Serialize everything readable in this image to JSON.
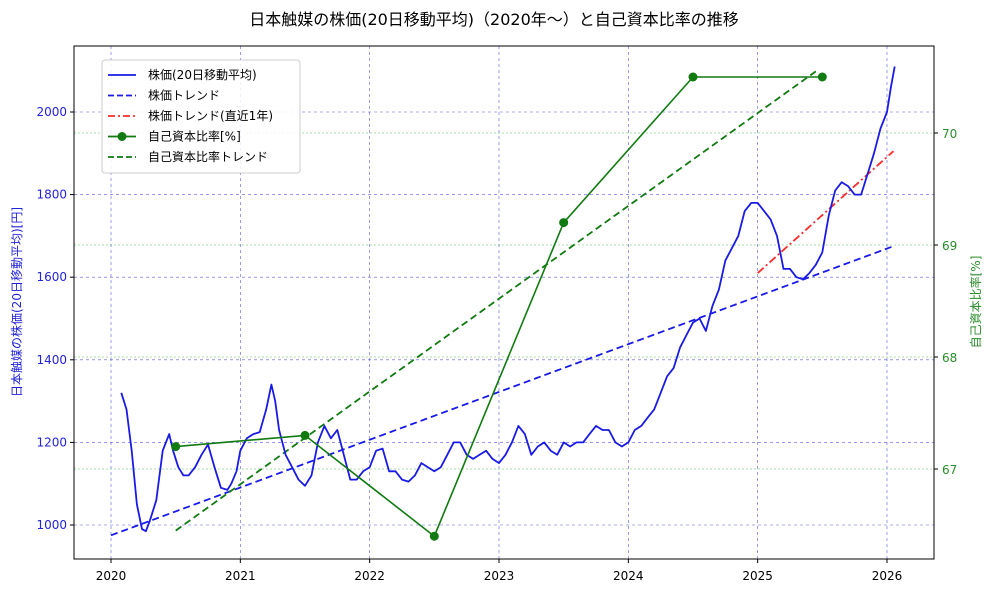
{
  "chart_data": {
    "type": "line",
    "title": "日本触媒の株価(20日移動平均)（2020年〜）と自己資本比率の推移",
    "xlabel": "",
    "ylabel": "日本触媒の株価(20日移動平均)[円]",
    "y2label": "自己資本比率[%]",
    "xlim": [
      2019.7,
      2026.35
    ],
    "ylim": [
      920,
      2160
    ],
    "y2lim": [
      66.2,
      70.8
    ],
    "x_ticks": [
      "2020",
      "2021",
      "2022",
      "2023",
      "2024",
      "2025",
      "2026"
    ],
    "y_ticks": [
      "1000",
      "1200",
      "1400",
      "1600",
      "1800",
      "2000"
    ],
    "y2_ticks": [
      "67",
      "68",
      "69",
      "70"
    ],
    "grid": true,
    "legend_position": "upper left",
    "colors": {
      "price": "#1a1ae6",
      "price_trend": "#1a1ae6",
      "price_trend_recent": "#ff2a2a",
      "equity_ratio": "#117a11",
      "equity_trend": "#117a11",
      "left_axis": "#2323d9",
      "right_axis": "#2b8c2b"
    },
    "legend": [
      {
        "label": "株価(20日移動平均)",
        "style": "solid",
        "color": "#1a1ae6"
      },
      {
        "label": "株価トレンド",
        "style": "dashed",
        "color": "#1a1ae6"
      },
      {
        "label": "株価トレンド(直近1年)",
        "style": "dashdot",
        "color": "#ff2a2a"
      },
      {
        "label": "自己資本比率[%]",
        "style": "solid-marker",
        "color": "#117a11"
      },
      {
        "label": "自己資本比率トレンド",
        "style": "dashed",
        "color": "#117a11"
      }
    ],
    "series": [
      {
        "name": "株価(20日移動平均)",
        "axis": "left",
        "x": [
          2020.08,
          2020.12,
          2020.16,
          2020.2,
          2020.24,
          2020.27,
          2020.3,
          2020.35,
          2020.4,
          2020.45,
          2020.48,
          2020.52,
          2020.56,
          2020.6,
          2020.65,
          2020.7,
          2020.75,
          2020.8,
          2020.85,
          2020.9,
          2020.93,
          2020.97,
          2021.0,
          2021.05,
          2021.1,
          2021.15,
          2021.2,
          2021.24,
          2021.27,
          2021.3,
          2021.35,
          2021.4,
          2021.45,
          2021.5,
          2021.55,
          2021.6,
          2021.65,
          2021.7,
          2021.75,
          2021.8,
          2021.85,
          2021.9,
          2021.95,
          2022.0,
          2022.05,
          2022.1,
          2022.15,
          2022.2,
          2022.25,
          2022.3,
          2022.35,
          2022.4,
          2022.45,
          2022.5,
          2022.55,
          2022.6,
          2022.65,
          2022.7,
          2022.75,
          2022.8,
          2022.85,
          2022.9,
          2022.95,
          2023.0,
          2023.05,
          2023.1,
          2023.15,
          2023.2,
          2023.25,
          2023.3,
          2023.35,
          2023.4,
          2023.45,
          2023.5,
          2023.55,
          2023.6,
          2023.65,
          2023.7,
          2023.75,
          2023.8,
          2023.85,
          2023.9,
          2023.95,
          2024.0,
          2024.05,
          2024.1,
          2024.15,
          2024.2,
          2024.25,
          2024.3,
          2024.35,
          2024.4,
          2024.45,
          2024.5,
          2024.55,
          2024.6,
          2024.65,
          2024.7,
          2024.75,
          2024.8,
          2024.85,
          2024.9,
          2024.95,
          2025.0,
          2025.05,
          2025.1,
          2025.15,
          2025.2,
          2025.25,
          2025.3,
          2025.35,
          2025.4,
          2025.45,
          2025.5,
          2025.55,
          2025.6,
          2025.65,
          2025.7,
          2025.75,
          2025.8,
          2025.85,
          2025.9,
          2025.95,
          2026.0,
          2026.03,
          2026.06
        ],
        "values": [
          1320,
          1280,
          1180,
          1050,
          990,
          985,
          1010,
          1060,
          1180,
          1220,
          1180,
          1140,
          1120,
          1120,
          1140,
          1170,
          1195,
          1140,
          1090,
          1085,
          1100,
          1130,
          1180,
          1210,
          1220,
          1225,
          1280,
          1340,
          1300,
          1230,
          1170,
          1140,
          1110,
          1095,
          1120,
          1200,
          1240,
          1210,
          1230,
          1170,
          1110,
          1110,
          1130,
          1140,
          1180,
          1185,
          1130,
          1130,
          1110,
          1105,
          1120,
          1150,
          1140,
          1130,
          1140,
          1170,
          1200,
          1200,
          1170,
          1160,
          1170,
          1180,
          1160,
          1150,
          1170,
          1200,
          1240,
          1220,
          1170,
          1190,
          1200,
          1180,
          1170,
          1200,
          1190,
          1200,
          1200,
          1220,
          1240,
          1230,
          1230,
          1200,
          1190,
          1200,
          1230,
          1240,
          1260,
          1280,
          1320,
          1360,
          1380,
          1430,
          1460,
          1490,
          1500,
          1470,
          1530,
          1570,
          1640,
          1670,
          1700,
          1760,
          1780,
          1780,
          1760,
          1740,
          1700,
          1620,
          1620,
          1600,
          1595,
          1610,
          1630,
          1660,
          1750,
          1810,
          1830,
          1820,
          1800,
          1800,
          1850,
          1900,
          1960,
          2000,
          2060,
          2110
        ]
      },
      {
        "name": "株価トレンド",
        "axis": "left",
        "x": [
          2020.0,
          2026.05
        ],
        "values": [
          975,
          1675
        ]
      },
      {
        "name": "株価トレンド(直近1年)",
        "axis": "left",
        "x": [
          2025.0,
          2026.05
        ],
        "values": [
          1610,
          1905
        ]
      },
      {
        "name": "自己資本比率[%]",
        "axis": "right",
        "x": [
          2020.5,
          2021.5,
          2022.5,
          2023.5,
          2024.5,
          2025.5
        ],
        "values": [
          67.2,
          67.3,
          66.4,
          69.2,
          70.5,
          70.5
        ]
      },
      {
        "name": "自己資本比率トレンド",
        "axis": "right",
        "x": [
          2020.5,
          2025.45
        ],
        "values": [
          66.45,
          70.55
        ]
      }
    ]
  }
}
